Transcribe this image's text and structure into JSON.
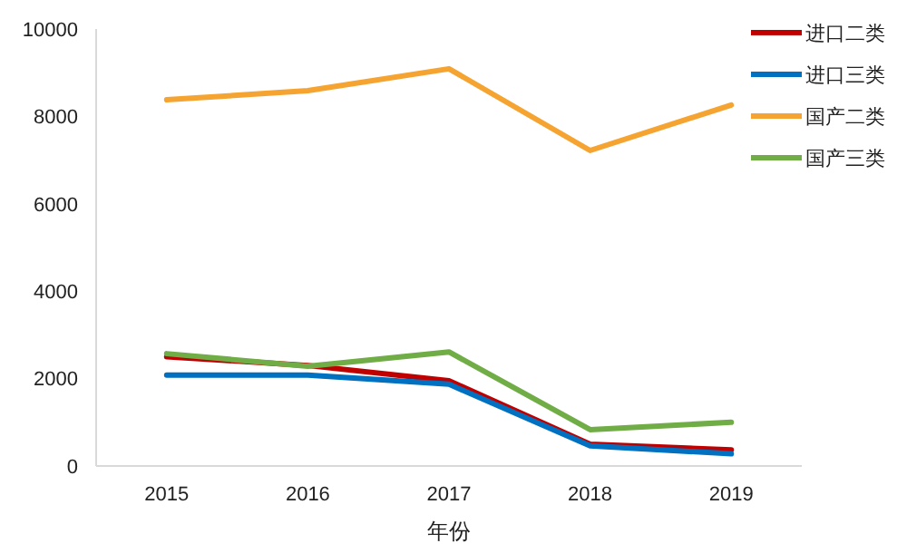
{
  "chart_data": {
    "type": "line",
    "xlabel": "年份",
    "categories": [
      "2015",
      "2016",
      "2017",
      "2018",
      "2019"
    ],
    "series": [
      {
        "name": "进口二类",
        "color": "#c00000",
        "values": [
          2500,
          2300,
          1950,
          500,
          370
        ]
      },
      {
        "name": "进口三类",
        "color": "#0070c0",
        "values": [
          2080,
          2080,
          1870,
          460,
          280
        ]
      },
      {
        "name": "国产二类",
        "color": "#f5a431",
        "values": [
          8380,
          8590,
          9090,
          7220,
          8260
        ]
      },
      {
        "name": "国产三类",
        "color": "#70ad47",
        "values": [
          2570,
          2280,
          2610,
          830,
          1000
        ]
      }
    ],
    "ylim": [
      0,
      10000
    ],
    "yticks": [
      0,
      2000,
      4000,
      6000,
      8000,
      10000
    ],
    "grid": false,
    "legend": "top right",
    "marker": "none",
    "line_style": "solid"
  }
}
